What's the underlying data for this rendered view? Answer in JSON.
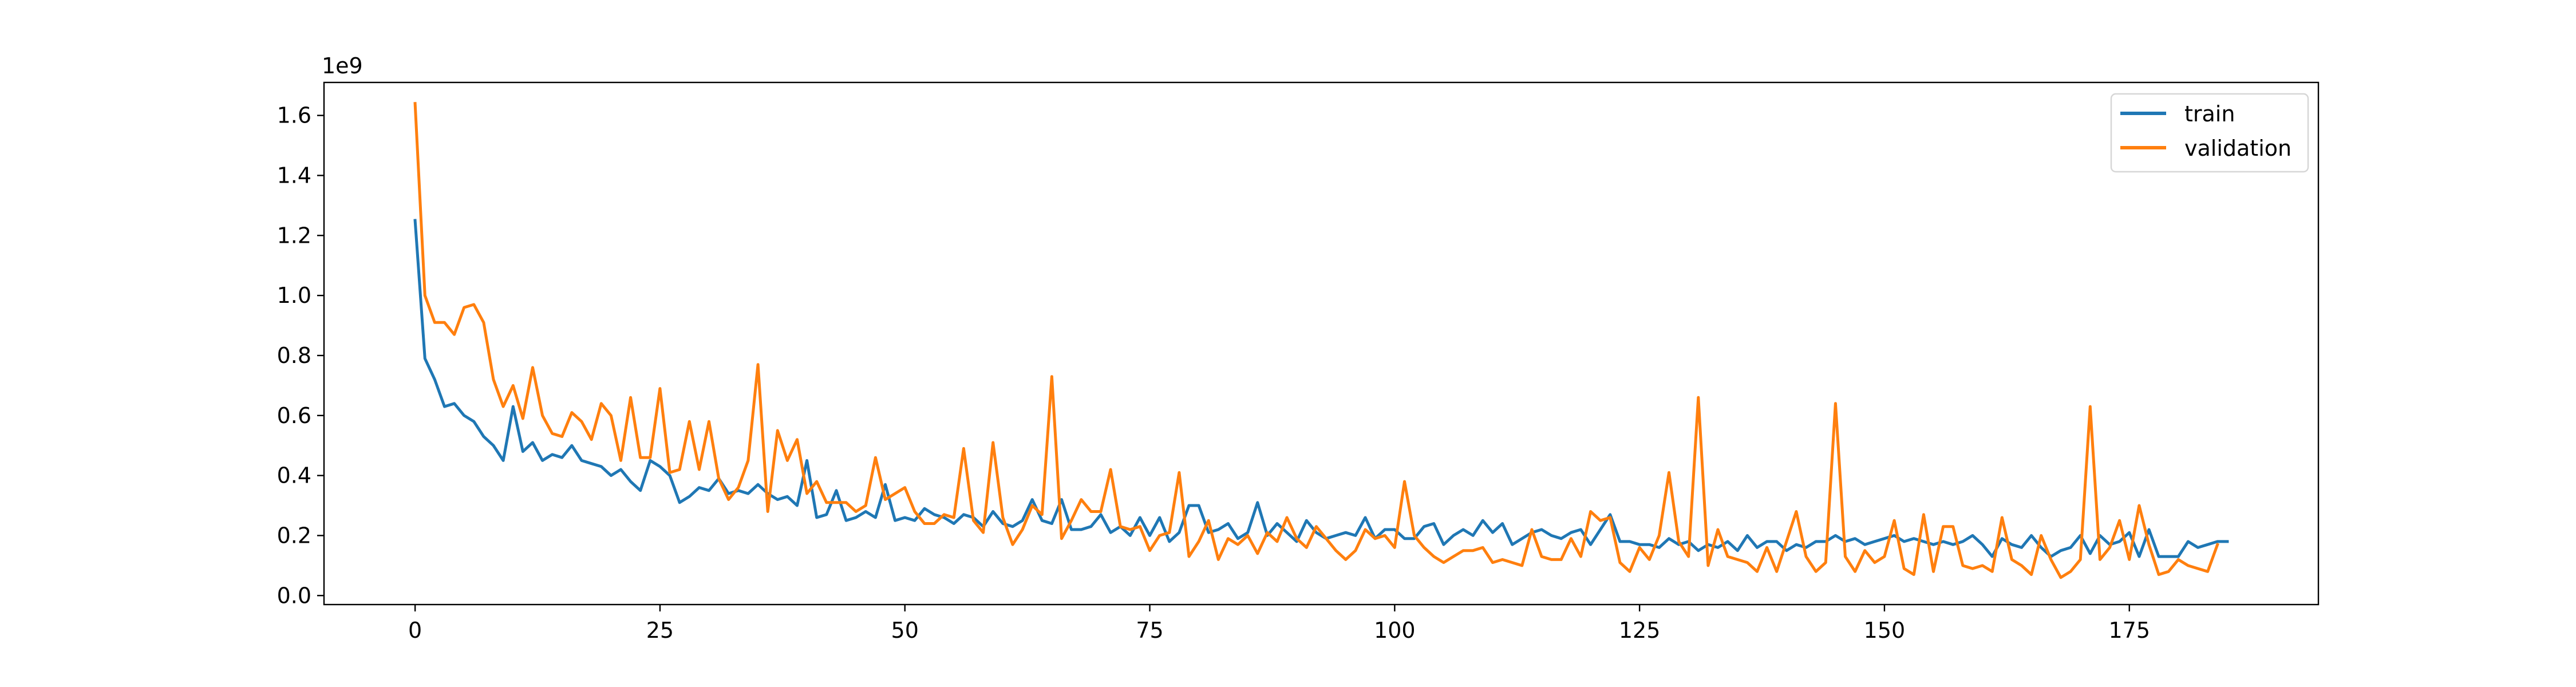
{
  "chart_data": {
    "type": "line",
    "title": "",
    "xlabel": "",
    "ylabel": "",
    "y_multiplier_label": "1e9",
    "xlim": [
      -9.3,
      194.3
    ],
    "ylim": [
      -0.03,
      1.71
    ],
    "x_ticks": [
      0,
      25,
      50,
      75,
      100,
      125,
      150,
      175
    ],
    "x_tick_labels": [
      "0",
      "25",
      "50",
      "75",
      "100",
      "125",
      "150",
      "175"
    ],
    "y_ticks": [
      0.0,
      0.2,
      0.4,
      0.6,
      0.8,
      1.0,
      1.2,
      1.4,
      1.6
    ],
    "y_tick_labels": [
      "0.0",
      "0.2",
      "0.4",
      "0.6",
      "0.8",
      "1.0",
      "1.2",
      "1.4",
      "1.6"
    ],
    "grid": false,
    "legend_position": "upper right",
    "series": [
      {
        "name": "train",
        "color": "#1f77b4",
        "values": [
          1.25,
          0.79,
          0.72,
          0.63,
          0.64,
          0.6,
          0.58,
          0.53,
          0.5,
          0.45,
          0.63,
          0.48,
          0.51,
          0.45,
          0.47,
          0.46,
          0.5,
          0.45,
          0.44,
          0.43,
          0.4,
          0.42,
          0.38,
          0.35,
          0.45,
          0.43,
          0.4,
          0.31,
          0.33,
          0.36,
          0.35,
          0.39,
          0.34,
          0.35,
          0.34,
          0.37,
          0.34,
          0.32,
          0.33,
          0.3,
          0.45,
          0.26,
          0.27,
          0.35,
          0.25,
          0.26,
          0.28,
          0.26,
          0.37,
          0.25,
          0.26,
          0.25,
          0.29,
          0.27,
          0.26,
          0.24,
          0.27,
          0.26,
          0.23,
          0.28,
          0.24,
          0.23,
          0.25,
          0.32,
          0.25,
          0.24,
          0.32,
          0.22,
          0.22,
          0.23,
          0.27,
          0.21,
          0.23,
          0.2,
          0.26,
          0.2,
          0.26,
          0.18,
          0.21,
          0.3,
          0.3,
          0.21,
          0.22,
          0.24,
          0.19,
          0.21,
          0.31,
          0.2,
          0.24,
          0.21,
          0.18,
          0.25,
          0.21,
          0.19,
          0.2,
          0.21,
          0.2,
          0.26,
          0.19,
          0.22,
          0.22,
          0.19,
          0.19,
          0.23,
          0.24,
          0.17,
          0.2,
          0.22,
          0.2,
          0.25,
          0.21,
          0.24,
          0.17,
          0.19,
          0.21,
          0.22,
          0.2,
          0.19,
          0.21,
          0.22,
          0.17,
          0.22,
          0.27,
          0.18,
          0.18,
          0.17,
          0.17,
          0.16,
          0.19,
          0.17,
          0.18,
          0.15,
          0.17,
          0.16,
          0.18,
          0.15,
          0.2,
          0.16,
          0.18,
          0.18,
          0.15,
          0.17,
          0.16,
          0.18,
          0.18,
          0.2,
          0.18,
          0.19,
          0.17,
          0.18,
          0.19,
          0.2,
          0.18,
          0.19,
          0.18,
          0.17,
          0.18,
          0.17,
          0.18,
          0.2,
          0.17,
          0.13,
          0.19,
          0.17,
          0.16,
          0.2,
          0.16,
          0.13,
          0.15,
          0.16,
          0.2,
          0.14,
          0.2,
          0.17,
          0.18,
          0.21,
          0.13,
          0.22,
          0.13,
          0.13,
          0.13,
          0.18,
          0.16,
          0.17,
          0.18,
          0.18
        ]
      },
      {
        "name": "validation",
        "color": "#ff7f0e",
        "values": [
          1.64,
          1.0,
          0.91,
          0.91,
          0.87,
          0.96,
          0.97,
          0.91,
          0.72,
          0.63,
          0.7,
          0.59,
          0.76,
          0.6,
          0.54,
          0.53,
          0.61,
          0.58,
          0.52,
          0.64,
          0.6,
          0.45,
          0.66,
          0.46,
          0.46,
          0.69,
          0.41,
          0.42,
          0.58,
          0.42,
          0.58,
          0.39,
          0.32,
          0.36,
          0.45,
          0.77,
          0.28,
          0.55,
          0.45,
          0.52,
          0.34,
          0.38,
          0.31,
          0.31,
          0.31,
          0.28,
          0.3,
          0.46,
          0.32,
          0.34,
          0.36,
          0.28,
          0.24,
          0.24,
          0.27,
          0.26,
          0.49,
          0.25,
          0.21,
          0.51,
          0.26,
          0.17,
          0.22,
          0.3,
          0.27,
          0.73,
          0.19,
          0.25,
          0.32,
          0.28,
          0.28,
          0.42,
          0.23,
          0.22,
          0.23,
          0.15,
          0.2,
          0.21,
          0.41,
          0.13,
          0.18,
          0.25,
          0.12,
          0.19,
          0.17,
          0.2,
          0.14,
          0.21,
          0.18,
          0.26,
          0.19,
          0.16,
          0.23,
          0.19,
          0.15,
          0.12,
          0.15,
          0.22,
          0.19,
          0.2,
          0.16,
          0.38,
          0.2,
          0.16,
          0.13,
          0.11,
          0.13,
          0.15,
          0.15,
          0.16,
          0.11,
          0.12,
          0.11,
          0.1,
          0.22,
          0.13,
          0.12,
          0.12,
          0.19,
          0.13,
          0.28,
          0.25,
          0.26,
          0.11,
          0.08,
          0.16,
          0.12,
          0.2,
          0.41,
          0.18,
          0.13,
          0.66,
          0.1,
          0.22,
          0.13,
          0.12,
          0.11,
          0.08,
          0.16,
          0.08,
          0.18,
          0.28,
          0.13,
          0.08,
          0.11,
          0.64,
          0.13,
          0.08,
          0.15,
          0.11,
          0.13,
          0.25,
          0.09,
          0.07,
          0.27,
          0.08,
          0.23,
          0.23,
          0.1,
          0.09,
          0.1,
          0.08,
          0.26,
          0.12,
          0.1,
          0.07,
          0.2,
          0.12,
          0.06,
          0.08,
          0.12,
          0.63,
          0.12,
          0.16,
          0.25,
          0.12,
          0.3,
          0.17,
          0.07,
          0.08,
          0.12,
          0.1,
          0.09,
          0.08,
          0.17
        ]
      }
    ]
  }
}
